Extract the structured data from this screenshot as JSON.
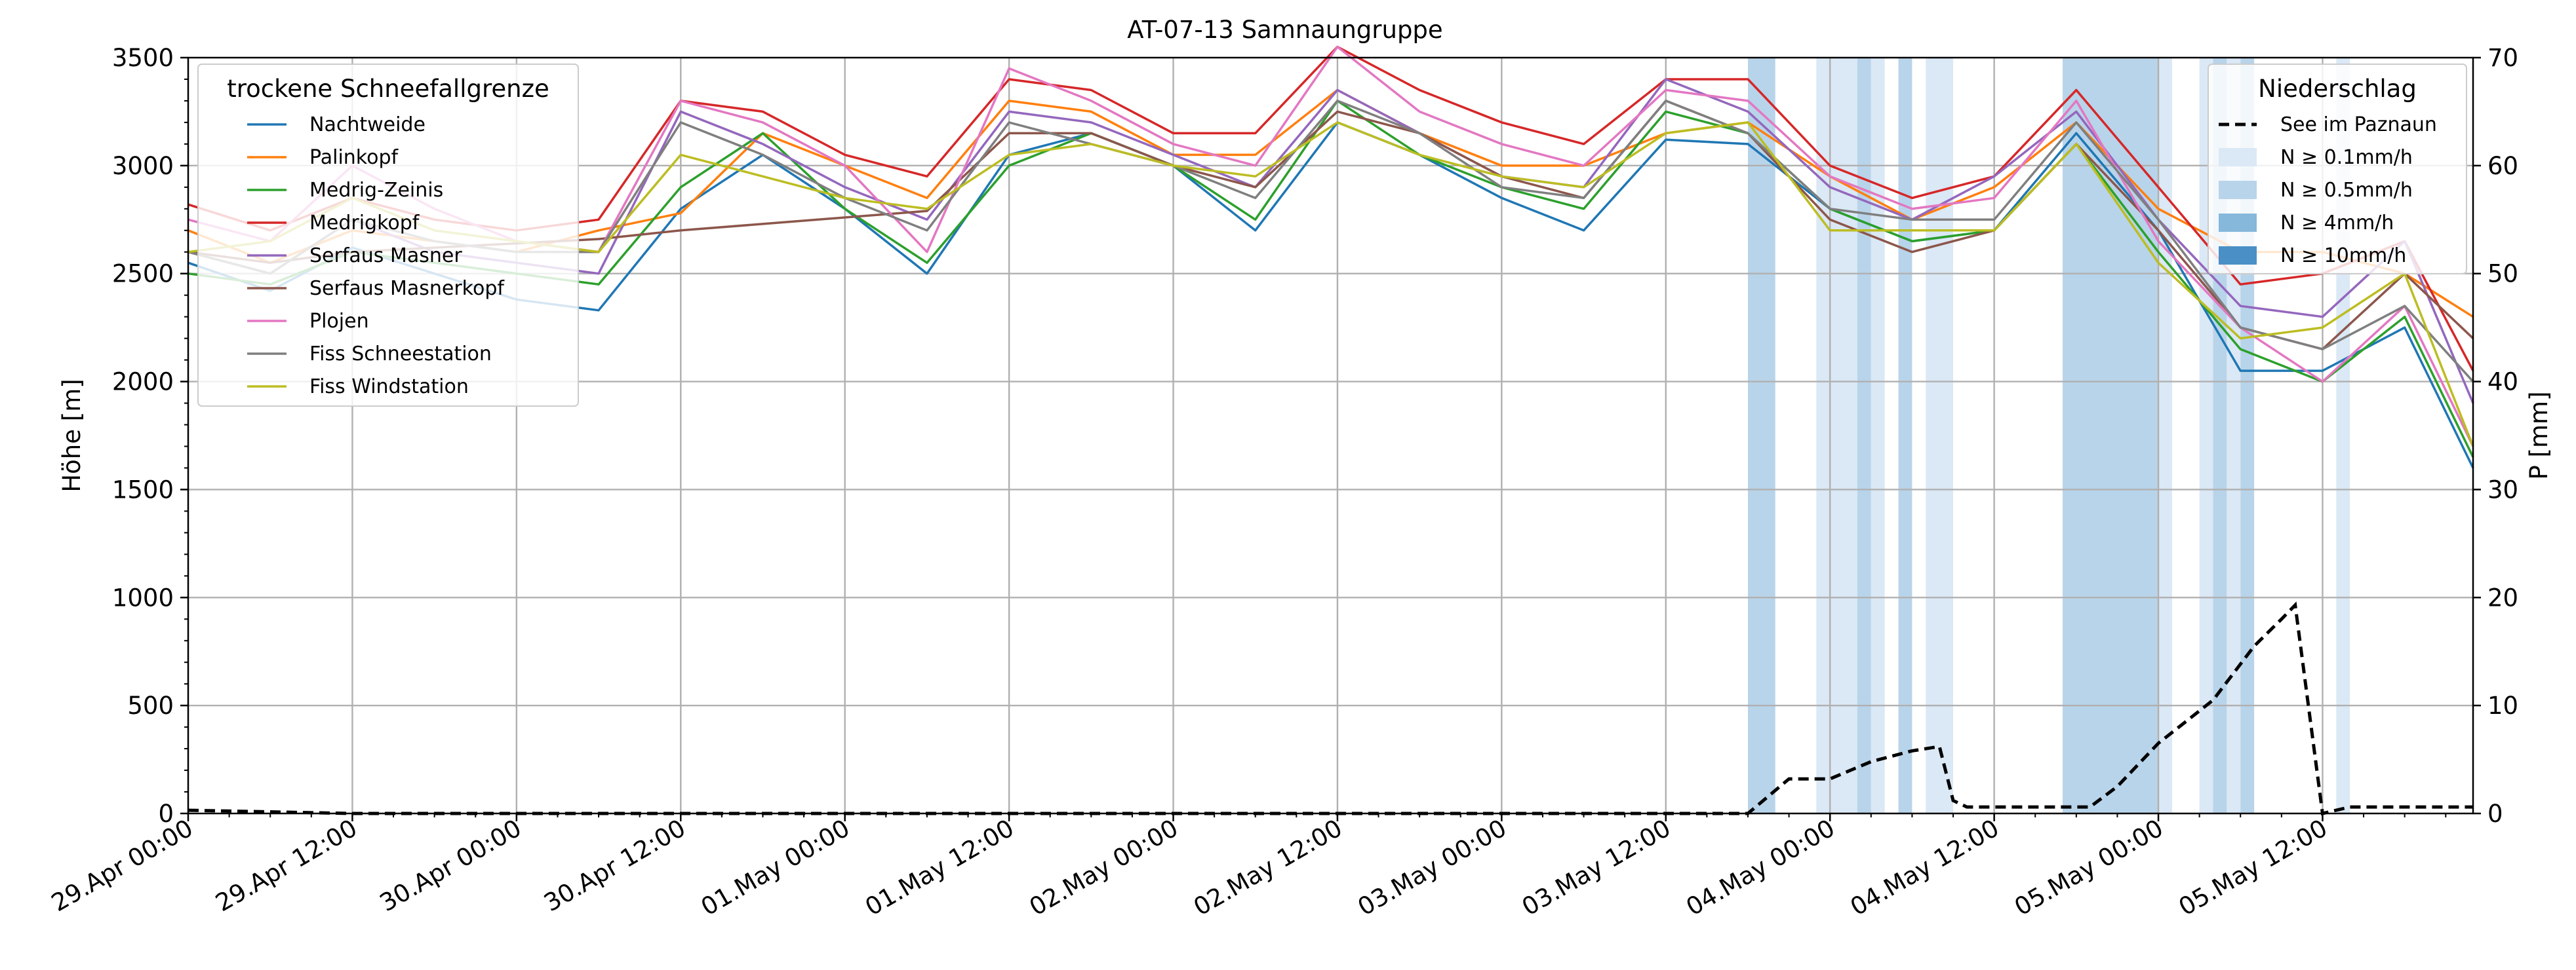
{
  "chart_data": {
    "type": "line",
    "title": "AT-07-13 Samnaungruppe",
    "ylabel": "Höhe [m]",
    "y2label": "P [mm]",
    "xlim": [
      "2025-04-29T00:00",
      "2025-05-05T23:00"
    ],
    "ylim": [
      0,
      3500
    ],
    "y2lim": [
      0,
      70
    ],
    "yticks": [
      0,
      500,
      1000,
      1500,
      2000,
      2500,
      3000,
      3500
    ],
    "y2ticks": [
      0,
      10,
      20,
      30,
      40,
      50,
      60,
      70
    ],
    "xticks": [
      {
        "t": "2025-04-29T00:00",
        "label": "29.Apr 00:00"
      },
      {
        "t": "2025-04-29T12:00",
        "label": "29.Apr 12:00"
      },
      {
        "t": "2025-04-30T00:00",
        "label": "30.Apr 00:00"
      },
      {
        "t": "2025-04-30T12:00",
        "label": "30.Apr 12:00"
      },
      {
        "t": "2025-05-01T00:00",
        "label": "01.May 00:00"
      },
      {
        "t": "2025-05-01T12:00",
        "label": "01.May 12:00"
      },
      {
        "t": "2025-05-02T00:00",
        "label": "02.May 00:00"
      },
      {
        "t": "2025-05-02T12:00",
        "label": "02.May 12:00"
      },
      {
        "t": "2025-05-03T00:00",
        "label": "03.May 00:00"
      },
      {
        "t": "2025-05-03T12:00",
        "label": "03.May 12:00"
      },
      {
        "t": "2025-05-04T00:00",
        "label": "04.May 00:00"
      },
      {
        "t": "2025-05-04T12:00",
        "label": "04.May 12:00"
      },
      {
        "t": "2025-05-05T00:00",
        "label": "05.May 00:00"
      },
      {
        "t": "2025-05-05T12:00",
        "label": "05.May 12:00"
      }
    ],
    "grid": true,
    "legend_left": {
      "title": "trockene Schneefallgrenze",
      "placement": "top-left"
    },
    "legend_right": {
      "title": "Niederschlag",
      "placement": "top-right",
      "line_entry": "See im Paznaun",
      "band_entries": [
        {
          "label": "N ≥ 0.1mm/h",
          "color": "#dbe8f5"
        },
        {
          "label": "N ≥ 0.5mm/h",
          "color": "#b8d4ea"
        },
        {
          "label": "N ≥ 4mm/h",
          "color": "#85b8db"
        },
        {
          "label": "N ≥ 10mm/h",
          "color": "#4a90c6"
        }
      ]
    },
    "series": [
      {
        "name": "Nachtweide",
        "color": "#1f77b4",
        "x": [
          "2025-04-29T00:00",
          "2025-04-29T06:00",
          "2025-04-29T12:00",
          "2025-04-29T18:00",
          "2025-04-30T00:00",
          "2025-04-30T06:00",
          "2025-04-30T12:00",
          "2025-04-30T18:00",
          "2025-05-01T00:00",
          "2025-05-01T06:00",
          "2025-05-01T12:00",
          "2025-05-01T18:00",
          "2025-05-02T00:00",
          "2025-05-02T06:00",
          "2025-05-02T12:00",
          "2025-05-02T18:00",
          "2025-05-03T00:00",
          "2025-05-03T06:00",
          "2025-05-03T12:00",
          "2025-05-03T18:00",
          "2025-05-04T00:00",
          "2025-05-04T06:00",
          "2025-05-04T12:00",
          "2025-05-04T18:00",
          "2025-05-05T00:00",
          "2025-05-05T06:00",
          "2025-05-05T12:00",
          "2025-05-05T18:00",
          "2025-05-05T23:00"
        ],
        "values": [
          2550,
          2420,
          2620,
          2500,
          2380,
          2330,
          2800,
          3050,
          2800,
          2500,
          3050,
          3150,
          3000,
          2700,
          3200,
          3050,
          2850,
          2700,
          3120,
          3100,
          2800,
          2650,
          2700,
          3150,
          2700,
          2050,
          2050,
          2250,
          1600
        ]
      },
      {
        "name": "Palinkopf",
        "color": "#ff7f0e",
        "x": [
          "2025-04-29T00:00",
          "2025-04-29T06:00",
          "2025-04-29T12:00",
          "2025-04-29T18:00",
          "2025-04-30T00:00",
          "2025-04-30T06:00",
          "2025-04-30T12:00",
          "2025-04-30T18:00",
          "2025-05-01T00:00",
          "2025-05-01T06:00",
          "2025-05-01T12:00",
          "2025-05-01T18:00",
          "2025-05-02T00:00",
          "2025-05-02T06:00",
          "2025-05-02T12:00",
          "2025-05-02T18:00",
          "2025-05-03T00:00",
          "2025-05-03T06:00",
          "2025-05-03T12:00",
          "2025-05-03T18:00",
          "2025-05-04T00:00",
          "2025-05-04T06:00",
          "2025-05-04T12:00",
          "2025-05-04T18:00",
          "2025-05-05T00:00",
          "2025-05-05T06:00",
          "2025-05-05T12:00",
          "2025-05-05T18:00",
          "2025-05-05T23:00"
        ],
        "values": [
          2700,
          2550,
          2700,
          2650,
          2600,
          2700,
          2780,
          3150,
          3000,
          2850,
          3300,
          3250,
          3050,
          3050,
          3350,
          3150,
          3000,
          3000,
          3150,
          3200,
          2950,
          2750,
          2900,
          3200,
          2800,
          2600,
          2600,
          2500,
          2300
        ]
      },
      {
        "name": "Medrig-Zeinis",
        "color": "#2ca02c",
        "x": [
          "2025-04-29T00:00",
          "2025-04-29T06:00",
          "2025-04-29T12:00",
          "2025-04-29T18:00",
          "2025-04-30T00:00",
          "2025-04-30T06:00",
          "2025-04-30T12:00",
          "2025-04-30T18:00",
          "2025-05-01T00:00",
          "2025-05-01T06:00",
          "2025-05-01T12:00",
          "2025-05-01T18:00",
          "2025-05-02T00:00",
          "2025-05-02T06:00",
          "2025-05-02T12:00",
          "2025-05-02T18:00",
          "2025-05-03T00:00",
          "2025-05-03T06:00",
          "2025-05-03T12:00",
          "2025-05-03T18:00",
          "2025-05-04T00:00",
          "2025-05-04T06:00",
          "2025-05-04T12:00",
          "2025-05-04T18:00",
          "2025-05-05T00:00",
          "2025-05-05T06:00",
          "2025-05-05T12:00",
          "2025-05-05T18:00",
          "2025-05-05T23:00"
        ],
        "values": [
          2500,
          2450,
          2600,
          2550,
          2500,
          2450,
          2900,
          3150,
          2800,
          2550,
          3000,
          3150,
          3000,
          2750,
          3300,
          3050,
          2900,
          2800,
          3250,
          3150,
          2800,
          2650,
          2700,
          3100,
          2600,
          2150,
          2000,
          2300,
          1650
        ]
      },
      {
        "name": "Medrigkopf",
        "color": "#d62728",
        "x": [
          "2025-04-29T00:00",
          "2025-04-29T06:00",
          "2025-04-29T12:00",
          "2025-04-29T18:00",
          "2025-04-30T00:00",
          "2025-04-30T06:00",
          "2025-04-30T12:00",
          "2025-04-30T18:00",
          "2025-05-01T00:00",
          "2025-05-01T06:00",
          "2025-05-01T12:00",
          "2025-05-01T18:00",
          "2025-05-02T00:00",
          "2025-05-02T06:00",
          "2025-05-02T12:00",
          "2025-05-02T18:00",
          "2025-05-03T00:00",
          "2025-05-03T06:00",
          "2025-05-03T12:00",
          "2025-05-03T18:00",
          "2025-05-04T00:00",
          "2025-05-04T06:00",
          "2025-05-04T12:00",
          "2025-05-04T18:00",
          "2025-05-05T00:00",
          "2025-05-05T06:00",
          "2025-05-05T12:00",
          "2025-05-05T18:00",
          "2025-05-05T23:00"
        ],
        "values": [
          2820,
          2700,
          2850,
          2750,
          2700,
          2750,
          3300,
          3250,
          3050,
          2950,
          3400,
          3350,
          3150,
          3150,
          3550,
          3350,
          3200,
          3100,
          3400,
          3400,
          3000,
          2850,
          2950,
          3350,
          2900,
          2450,
          2500,
          2650,
          2050
        ]
      },
      {
        "name": "Serfaus Masner",
        "color": "#9467bd",
        "x": [
          "2025-04-29T00:00",
          "2025-04-29T06:00",
          "2025-04-29T12:00",
          "2025-04-29T18:00",
          "2025-04-30T00:00",
          "2025-04-30T06:00",
          "2025-04-30T12:00",
          "2025-04-30T18:00",
          "2025-05-01T00:00",
          "2025-05-01T06:00",
          "2025-05-01T12:00",
          "2025-05-01T18:00",
          "2025-05-02T00:00",
          "2025-05-02T06:00",
          "2025-05-02T12:00",
          "2025-05-02T18:00",
          "2025-05-03T00:00",
          "2025-05-03T06:00",
          "2025-05-03T12:00",
          "2025-05-03T18:00",
          "2025-05-04T00:00",
          "2025-05-04T06:00",
          "2025-05-04T12:00",
          "2025-05-04T18:00",
          "2025-05-05T00:00",
          "2025-05-05T06:00",
          "2025-05-05T12:00",
          "2025-05-05T18:00",
          "2025-05-05T23:00"
        ],
        "values": [
          2600,
          2500,
          2750,
          2600,
          2550,
          2500,
          3250,
          3100,
          2900,
          2750,
          3250,
          3200,
          3050,
          2900,
          3350,
          3150,
          2950,
          2900,
          3400,
          3250,
          2900,
          2750,
          2950,
          3250,
          2750,
          2350,
          2300,
          2650,
          1900
        ]
      },
      {
        "name": "Serfaus Masnerkopf",
        "color": "#8c564b",
        "x": [
          "2025-04-29T00:00",
          "2025-04-29T06:00",
          "2025-04-29T12:00",
          "2025-04-29T18:00",
          "2025-04-30T00:00",
          "2025-04-30T06:00",
          "2025-04-30T12:00",
          "2025-04-30T18:00",
          "2025-05-01T00:00",
          "2025-05-01T06:00",
          "2025-05-01T12:00",
          "2025-05-01T18:00",
          "2025-05-02T00:00",
          "2025-05-02T06:00",
          "2025-05-02T12:00",
          "2025-05-02T18:00",
          "2025-05-03T00:00",
          "2025-05-03T06:00",
          "2025-05-03T12:00",
          "2025-05-03T18:00",
          "2025-05-04T00:00",
          "2025-05-04T06:00",
          "2025-05-04T12:00",
          "2025-05-04T18:00",
          "2025-05-05T00:00",
          "2025-05-05T06:00",
          "2025-05-05T12:00",
          "2025-05-05T18:00",
          "2025-05-05T23:00"
        ],
        "values": [
          2600,
          2550,
          2600,
          2620,
          2640,
          2660,
          2700,
          2730,
          2760,
          2790,
          3150,
          3150,
          3000,
          2900,
          3250,
          3150,
          2950,
          2850,
          3300,
          3150,
          2750,
          2600,
          2700,
          3100,
          2700,
          2250,
          2150,
          2500,
          2200
        ]
      },
      {
        "name": "Plojen",
        "color": "#e377c2",
        "x": [
          "2025-04-29T00:00",
          "2025-04-29T06:00",
          "2025-04-29T12:00",
          "2025-04-29T18:00",
          "2025-04-30T00:00",
          "2025-04-30T06:00",
          "2025-04-30T12:00",
          "2025-04-30T18:00",
          "2025-05-01T00:00",
          "2025-05-01T06:00",
          "2025-05-01T12:00",
          "2025-05-01T18:00",
          "2025-05-02T00:00",
          "2025-05-02T06:00",
          "2025-05-02T12:00",
          "2025-05-02T18:00",
          "2025-05-03T00:00",
          "2025-05-03T06:00",
          "2025-05-03T12:00",
          "2025-05-03T18:00",
          "2025-05-04T00:00",
          "2025-05-04T06:00",
          "2025-05-04T12:00",
          "2025-05-04T18:00",
          "2025-05-05T00:00",
          "2025-05-05T06:00",
          "2025-05-05T12:00",
          "2025-05-05T18:00",
          "2025-05-05T23:00"
        ],
        "values": [
          2750,
          2650,
          3000,
          2800,
          2650,
          2600,
          3300,
          3200,
          3000,
          2600,
          3450,
          3300,
          3100,
          3000,
          3550,
          3250,
          3100,
          3000,
          3350,
          3300,
          2950,
          2800,
          2850,
          3300,
          2650,
          2250,
          2000,
          2350,
          1700
        ]
      },
      {
        "name": "Fiss Schneestation",
        "color": "#7f7f7f",
        "x": [
          "2025-04-29T00:00",
          "2025-04-29T06:00",
          "2025-04-29T12:00",
          "2025-04-29T18:00",
          "2025-04-30T00:00",
          "2025-04-30T06:00",
          "2025-04-30T12:00",
          "2025-04-30T18:00",
          "2025-05-01T00:00",
          "2025-05-01T06:00",
          "2025-05-01T12:00",
          "2025-05-01T18:00",
          "2025-05-02T00:00",
          "2025-05-02T06:00",
          "2025-05-02T12:00",
          "2025-05-02T18:00",
          "2025-05-03T00:00",
          "2025-05-03T06:00",
          "2025-05-03T12:00",
          "2025-05-03T18:00",
          "2025-05-04T00:00",
          "2025-05-04T06:00",
          "2025-05-04T12:00",
          "2025-05-04T18:00",
          "2025-05-05T00:00",
          "2025-05-05T06:00",
          "2025-05-05T12:00",
          "2025-05-05T18:00",
          "2025-05-05T23:00"
        ],
        "values": [
          2600,
          2500,
          2750,
          2650,
          2600,
          2600,
          3200,
          3050,
          2850,
          2700,
          3200,
          3100,
          3000,
          2850,
          3300,
          3150,
          2900,
          2850,
          3300,
          3150,
          2800,
          2750,
          2750,
          3200,
          2750,
          2250,
          2150,
          2350,
          2000
        ]
      },
      {
        "name": "Fiss Windstation",
        "color": "#bcbd22",
        "x": [
          "2025-04-29T00:00",
          "2025-04-29T06:00",
          "2025-04-29T12:00",
          "2025-04-29T18:00",
          "2025-04-30T00:00",
          "2025-04-30T06:00",
          "2025-04-30T12:00",
          "2025-04-30T18:00",
          "2025-05-01T00:00",
          "2025-05-01T06:00",
          "2025-05-01T12:00",
          "2025-05-01T18:00",
          "2025-05-02T00:00",
          "2025-05-02T06:00",
          "2025-05-02T12:00",
          "2025-05-02T18:00",
          "2025-05-03T00:00",
          "2025-05-03T06:00",
          "2025-05-03T12:00",
          "2025-05-03T18:00",
          "2025-05-04T00:00",
          "2025-05-04T06:00",
          "2025-05-04T12:00",
          "2025-05-04T18:00",
          "2025-05-05T00:00",
          "2025-05-05T06:00",
          "2025-05-05T12:00",
          "2025-05-05T18:00",
          "2025-05-05T23:00"
        ],
        "values": [
          2600,
          2650,
          2850,
          2700,
          2650,
          2600,
          3050,
          2950,
          2850,
          2800,
          3050,
          3100,
          3000,
          2950,
          3200,
          3050,
          2950,
          2900,
          3150,
          3200,
          2700,
          2700,
          2700,
          3100,
          2550,
          2200,
          2250,
          2500,
          1700
        ]
      }
    ],
    "precip_series": {
      "name": "See im Paznaun",
      "color": "#000000",
      "x": [
        "2025-04-29T00:00",
        "2025-04-29T12:00",
        "2025-05-03T18:00",
        "2025-05-03T21:00",
        "2025-05-04T00:00",
        "2025-05-04T03:00",
        "2025-05-04T06:00",
        "2025-05-04T08:00",
        "2025-05-04T09:00",
        "2025-05-04T10:00",
        "2025-05-04T14:00",
        "2025-05-04T19:00",
        "2025-05-04T21:00",
        "2025-05-05T00:00",
        "2025-05-05T04:00",
        "2025-05-05T07:00",
        "2025-05-05T09:00",
        "2025-05-05T10:00",
        "2025-05-05T12:00",
        "2025-05-05T14:00",
        "2025-05-05T23:00"
      ],
      "values": [
        0.3,
        0,
        0,
        3.2,
        3.2,
        4.8,
        5.8,
        6.2,
        1.2,
        0.6,
        0.6,
        0.6,
        2.5,
        6.5,
        10.5,
        15.5,
        18,
        19.3,
        0,
        0.6,
        0.6
      ]
    },
    "precip_bands": [
      {
        "start": "2025-05-03T18:00",
        "end": "2025-05-03T20:00",
        "level": 1
      },
      {
        "start": "2025-05-03T23:00",
        "end": "2025-05-04T02:00",
        "level": 0
      },
      {
        "start": "2025-05-04T02:00",
        "end": "2025-05-04T03:00",
        "level": 1
      },
      {
        "start": "2025-05-04T03:00",
        "end": "2025-05-04T04:00",
        "level": 0
      },
      {
        "start": "2025-05-04T05:00",
        "end": "2025-05-04T06:00",
        "level": 1
      },
      {
        "start": "2025-05-04T07:00",
        "end": "2025-05-04T09:00",
        "level": 0
      },
      {
        "start": "2025-05-04T17:00",
        "end": "2025-05-05T00:00",
        "level": 1
      },
      {
        "start": "2025-05-05T00:00",
        "end": "2025-05-05T01:00",
        "level": 0
      },
      {
        "start": "2025-05-05T03:00",
        "end": "2025-05-05T04:00",
        "level": 0
      },
      {
        "start": "2025-05-05T04:00",
        "end": "2025-05-05T05:00",
        "level": 1
      },
      {
        "start": "2025-05-05T05:00",
        "end": "2025-05-05T06:00",
        "level": 0
      },
      {
        "start": "2025-05-05T06:00",
        "end": "2025-05-05T07:00",
        "level": 1
      },
      {
        "start": "2025-05-05T13:00",
        "end": "2025-05-05T14:00",
        "level": 0
      }
    ]
  }
}
